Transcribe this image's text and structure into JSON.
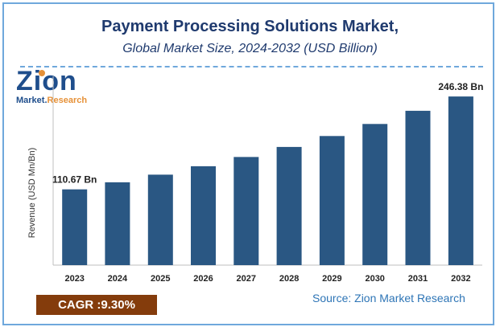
{
  "header": {
    "title": "Payment Processing Solutions Market,",
    "subtitle": "Global Market Size, 2024-2032 (USD Billion)"
  },
  "logo": {
    "word": "Zion",
    "line_a": "Market.",
    "line_b": "Research"
  },
  "chart_data": {
    "type": "bar",
    "categories": [
      "2023",
      "2024",
      "2025",
      "2026",
      "2027",
      "2028",
      "2029",
      "2030",
      "2031",
      "2032"
    ],
    "values": [
      110.67,
      121.0,
      132.2,
      144.5,
      158.0,
      172.7,
      188.7,
      206.3,
      225.5,
      246.38
    ],
    "ylabel": "Revenue (USD Mn/Bn)",
    "ylim": [
      0,
      270
    ],
    "bar_color": "#2a5783",
    "grid": false,
    "data_labels": [
      {
        "category": "2023",
        "text": "110.67 Bn"
      },
      {
        "category": "2032",
        "text": "246.38 Bn"
      }
    ]
  },
  "footer": {
    "cagr_label": "CAGR :",
    "cagr_value": "9.30%",
    "source": "Source: Zion Market Research"
  },
  "colors": {
    "accent": "#1f3a6e",
    "cagr_bg": "#843c0c",
    "source": "#2e75b6",
    "border": "#6fa8dc"
  }
}
